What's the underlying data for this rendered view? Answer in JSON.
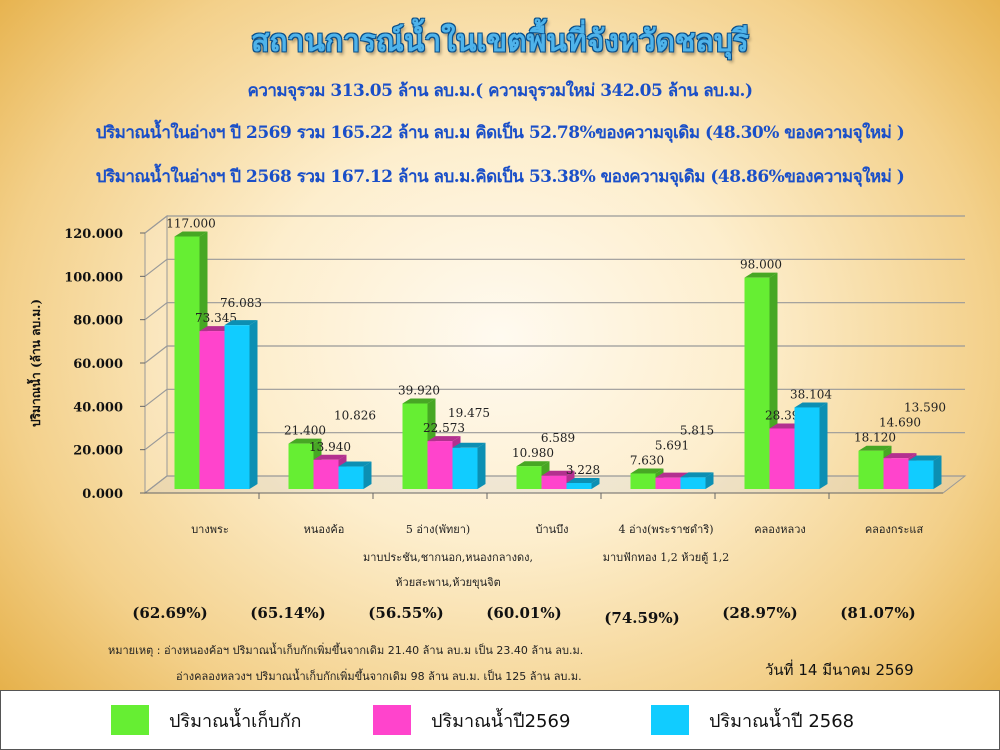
{
  "header": {
    "title": "สถานการณ์น้ำในเขตพื้นที่จังหวัดชลบุรี",
    "line1": "ความจุรวม  313.05 ล้าน ลบ.ม.( ความจุรวมใหม่ 342.05 ล้าน ลบ.ม.)",
    "line2": "ปริมาณน้ำในอ่างฯ ปี 2569 รวม 165.22 ล้าน ลบ.ม คิดเป็น 52.78%ของความจุเดิม (48.30% ของความจุใหม่ )",
    "line3": "ปริมาณน้ำในอ่างฯ ปี 2568 รวม 167.12 ล้าน ลบ.ม.คิดเป็น 53.38% ของความจุเดิม (48.86%ของความจุใหม่ )"
  },
  "chart_data": {
    "type": "bar",
    "ylabel": "ปริมาณน้ำ (ล้าน ลบ.ม.)",
    "ylim": [
      0,
      120
    ],
    "yticks": [
      "0.000",
      "20.000",
      "40.000",
      "60.000",
      "80.000",
      "100.000",
      "120.000"
    ],
    "grid": true,
    "legend_position": "bottom",
    "categories": [
      "บางพระ",
      "หนองค้อ",
      "5 อ่าง(พัทยา)",
      "บ้านบึง",
      "4 อ่าง(พระราชดำริ)",
      "คลองหลวง",
      "คลองกระแส"
    ],
    "category_notes": [
      "",
      "",
      "มาบประชัน,ชากนอก,หนองกลางดง,|ห้วยสะพาน,ห้วยขุนจิต",
      "",
      "มาบฟักทอง 1,2 ห้วยตู้ 1,2",
      "",
      ""
    ],
    "series": [
      {
        "name": "ปริมาณน้ำเก็บกัก",
        "color": "#66ee33",
        "values": [
          117.0,
          21.4,
          39.92,
          10.98,
          7.63,
          98.0,
          18.12
        ],
        "labels": [
          "117.000",
          "21.400",
          "39.920",
          "10.980",
          "7.630",
          "98.000",
          "18.120"
        ]
      },
      {
        "name": "ปริมาณน้ำปี2569",
        "color": "#ff44cc",
        "values": [
          73.345,
          13.94,
          22.573,
          6.589,
          5.691,
          28.393,
          14.69
        ],
        "labels": [
          "73.345",
          "13.940",
          "22.573",
          "6.589",
          "5.691",
          "28.393",
          "14.690"
        ]
      },
      {
        "name": "ปริมาณน้ำปี 2568",
        "color": "#11ccff",
        "values": [
          76.083,
          10.826,
          19.475,
          3.228,
          5.815,
          38.104,
          13.59
        ],
        "labels": [
          "76.083",
          "10.826",
          "19.475",
          "3.228",
          "5.815",
          "38.104",
          "13.590"
        ]
      }
    ],
    "percentages": [
      "(62.69%)",
      "(65.14%)",
      "(56.55%)",
      "(60.01%)",
      "(74.59%)",
      "(28.97%)",
      "(81.07%)"
    ]
  },
  "notes": {
    "line1": "หมายเหตุ :  อ่างหนองค้อฯ ปริมาณน้ำเก็บกักเพิ่มขึ้นจากเดิม 21.40 ล้าน ลบ.ม เป็น 23.40 ล้าน ลบ.ม.",
    "line2": "อ่างคลองหลวงฯ ปริมาณน้ำเก็บกักเพิ่มขึ้นจากเดิม 98 ล้าน ลบ.ม. เป็น 125 ล้าน ลบ.ม.",
    "date": "วันที่ 14 มีนาคม 2569"
  }
}
